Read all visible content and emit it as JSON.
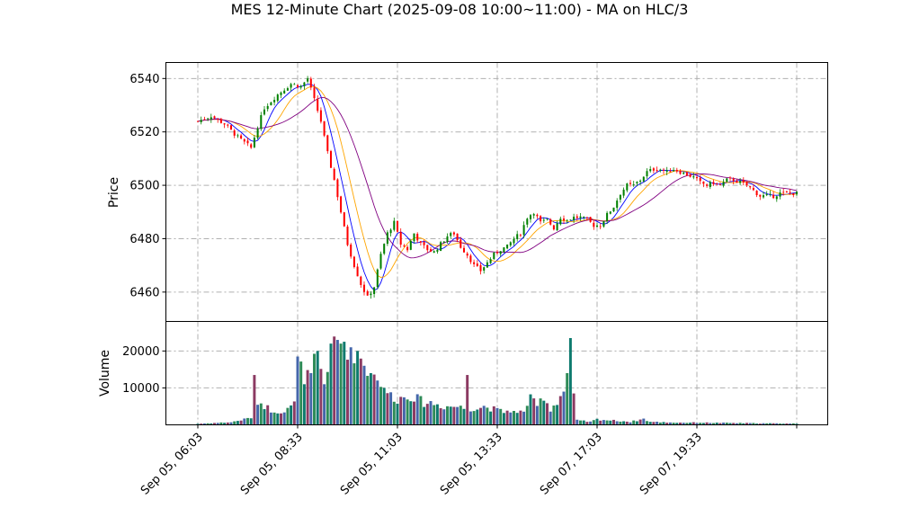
{
  "chart_data": {
    "type": "candlestick",
    "title": "MES 12-Minute Chart (2025-09-08 10:00~11:00) - MA on HLC/3",
    "price_panel": {
      "ylabel": "Price",
      "ylim": [
        6449,
        6546
      ],
      "yticks": [
        6460,
        6480,
        6500,
        6520,
        6540
      ],
      "grid": true
    },
    "volume_panel": {
      "ylabel": "Volume",
      "ylim": [
        0,
        28000
      ],
      "yticks": [
        10000,
        20000
      ],
      "grid": true
    },
    "x_ticks": [
      {
        "index": 0,
        "label": "Sep 05, 06:03"
      },
      {
        "index": 30,
        "label": "Sep 05, 08:33"
      },
      {
        "index": 60,
        "label": "Sep 05, 11:03"
      },
      {
        "index": 90,
        "label": "Sep 05, 13:33"
      },
      {
        "index": 120,
        "label": "Sep 07, 17:03"
      },
      {
        "index": 150,
        "label": "Sep 07, 19:33"
      },
      {
        "index": 180,
        "label": ""
      }
    ],
    "bar_count": 181,
    "close_anchors": [
      [
        0,
        6524
      ],
      [
        4,
        6526
      ],
      [
        8,
        6523
      ],
      [
        12,
        6518
      ],
      [
        16,
        6514
      ],
      [
        18,
        6522
      ],
      [
        20,
        6529
      ],
      [
        24,
        6534
      ],
      [
        28,
        6538
      ],
      [
        31,
        6537
      ],
      [
        33,
        6540
      ],
      [
        35,
        6532
      ],
      [
        37,
        6524
      ],
      [
        39,
        6512
      ],
      [
        41,
        6502
      ],
      [
        43,
        6490
      ],
      [
        45,
        6478
      ],
      [
        47,
        6470
      ],
      [
        49,
        6463
      ],
      [
        51,
        6458
      ],
      [
        53,
        6462
      ],
      [
        55,
        6474
      ],
      [
        57,
        6482
      ],
      [
        59,
        6486
      ],
      [
        61,
        6478
      ],
      [
        63,
        6476
      ],
      [
        65,
        6482
      ],
      [
        67,
        6478
      ],
      [
        69,
        6476
      ],
      [
        71,
        6475
      ],
      [
        73,
        6478
      ],
      [
        75,
        6481
      ],
      [
        77,
        6482
      ],
      [
        79,
        6477
      ],
      [
        81,
        6474
      ],
      [
        83,
        6470
      ],
      [
        85,
        6468
      ],
      [
        87,
        6471
      ],
      [
        89,
        6474
      ],
      [
        91,
        6476
      ],
      [
        93,
        6477
      ],
      [
        95,
        6480
      ],
      [
        97,
        6482
      ],
      [
        99,
        6488
      ],
      [
        101,
        6490
      ],
      [
        103,
        6486
      ],
      [
        105,
        6487
      ],
      [
        107,
        6484
      ],
      [
        109,
        6488
      ],
      [
        111,
        6487
      ],
      [
        113,
        6488
      ],
      [
        115,
        6488
      ],
      [
        117,
        6487
      ],
      [
        119,
        6485
      ],
      [
        121,
        6485
      ],
      [
        123,
        6489
      ],
      [
        125,
        6492
      ],
      [
        127,
        6497
      ],
      [
        129,
        6500
      ],
      [
        131,
        6500
      ],
      [
        133,
        6502
      ],
      [
        135,
        6505
      ],
      [
        137,
        6506
      ],
      [
        139,
        6506
      ],
      [
        141,
        6505
      ],
      [
        143,
        6506
      ],
      [
        145,
        6505
      ],
      [
        147,
        6504
      ],
      [
        149,
        6503
      ],
      [
        151,
        6501
      ],
      [
        153,
        6500
      ],
      [
        155,
        6501
      ],
      [
        157,
        6500
      ],
      [
        159,
        6502
      ],
      [
        161,
        6502
      ],
      [
        163,
        6501
      ],
      [
        165,
        6500
      ],
      [
        167,
        6498
      ],
      [
        169,
        6496
      ],
      [
        171,
        6496
      ],
      [
        173,
        6496
      ],
      [
        175,
        6497
      ],
      [
        177,
        6497
      ],
      [
        180,
        6497
      ]
    ],
    "volume_anchors": [
      [
        0,
        300
      ],
      [
        10,
        700
      ],
      [
        14,
        1500
      ],
      [
        16,
        2000
      ],
      [
        17,
        13500
      ],
      [
        18,
        6500
      ],
      [
        22,
        4000
      ],
      [
        26,
        3500
      ],
      [
        29,
        5500
      ],
      [
        30,
        18500
      ],
      [
        32,
        11000
      ],
      [
        34,
        14000
      ],
      [
        36,
        20000
      ],
      [
        38,
        11000
      ],
      [
        40,
        22000
      ],
      [
        42,
        23000
      ],
      [
        44,
        22500
      ],
      [
        46,
        21000
      ],
      [
        48,
        20000
      ],
      [
        50,
        16000
      ],
      [
        52,
        14000
      ],
      [
        54,
        12000
      ],
      [
        56,
        10000
      ],
      [
        58,
        8000
      ],
      [
        60,
        7000
      ],
      [
        62,
        7500
      ],
      [
        64,
        8000
      ],
      [
        66,
        7000
      ],
      [
        68,
        6000
      ],
      [
        70,
        6000
      ],
      [
        72,
        5500
      ],
      [
        74,
        5000
      ],
      [
        76,
        5000
      ],
      [
        78,
        5000
      ],
      [
        80,
        4500
      ],
      [
        81,
        13500
      ],
      [
        82,
        4500
      ],
      [
        84,
        4500
      ],
      [
        86,
        5000
      ],
      [
        88,
        4500
      ],
      [
        90,
        4000
      ],
      [
        92,
        3500
      ],
      [
        94,
        4000
      ],
      [
        96,
        3000
      ],
      [
        98,
        4000
      ],
      [
        100,
        7000
      ],
      [
        102,
        5000
      ],
      [
        104,
        8000
      ],
      [
        106,
        4000
      ],
      [
        108,
        6500
      ],
      [
        110,
        9000
      ],
      [
        111,
        14000
      ],
      [
        112,
        23500
      ],
      [
        113,
        8500
      ],
      [
        114,
        1200
      ],
      [
        118,
        800
      ],
      [
        120,
        1500
      ],
      [
        124,
        1200
      ],
      [
        128,
        1000
      ],
      [
        130,
        800
      ],
      [
        134,
        1600
      ],
      [
        136,
        800
      ],
      [
        140,
        700
      ],
      [
        144,
        600
      ],
      [
        150,
        600
      ],
      [
        160,
        500
      ],
      [
        170,
        400
      ],
      [
        180,
        350
      ]
    ],
    "series": [
      {
        "name": "",
        "kind": "ma",
        "period": 5,
        "color": "#0000ff"
      },
      {
        "name": "",
        "kind": "ma",
        "period": 10,
        "color": "#ffa500"
      },
      {
        "name": "",
        "kind": "ma",
        "period": 20,
        "color": "#800080"
      }
    ],
    "colors": {
      "up": "#008000",
      "down": "#ff0000",
      "volume": [
        "#0d7a6e",
        "#8b3a62",
        "#4466aa",
        "#2e8b57"
      ]
    }
  }
}
